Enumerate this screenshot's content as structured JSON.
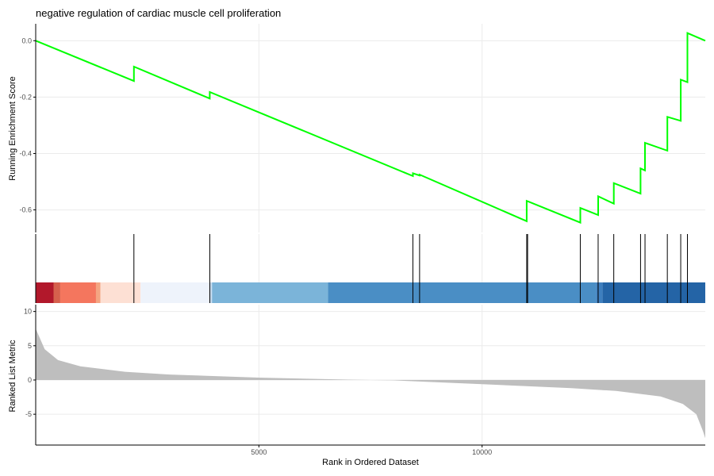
{
  "chart_data": {
    "type": "gsea-enrichment-plot",
    "title": "negative regulation of cardiac muscle cell proliferation",
    "xlabel": "Rank in Ordered Dataset",
    "xlim": [
      0,
      15000
    ],
    "x_ticks": [
      5000,
      10000
    ],
    "x_tick_labels": [
      "5000",
      "10000"
    ],
    "grid": true,
    "panels": {
      "running_score": {
        "ylabel": "Running Enrichment Score",
        "ylim": [
          -0.68,
          0.06
        ],
        "y_ticks": [
          0.0,
          -0.2,
          -0.4,
          -0.6
        ],
        "y_tick_labels": [
          "0.0",
          "-0.2",
          "-0.4",
          "-0.6"
        ],
        "line_color": "#00ff00",
        "series": [
          {
            "x": [
              0,
              2200,
              2200,
              3900,
              3900,
              8450,
              8450,
              8600,
              8600,
              11000,
              11000,
              12200,
              12200,
              12600,
              12600,
              12950,
              12950,
              13550,
              13550,
              13650,
              13650,
              14150,
              14150,
              14450,
              14450,
              14600,
              14600,
              15000
            ],
            "y": [
              0.0,
              -0.143,
              -0.092,
              -0.205,
              -0.182,
              -0.48,
              -0.47,
              -0.478,
              -0.475,
              -0.64,
              -0.568,
              -0.645,
              -0.593,
              -0.618,
              -0.552,
              -0.578,
              -0.505,
              -0.542,
              -0.453,
              -0.46,
              -0.362,
              -0.39,
              -0.27,
              -0.284,
              -0.138,
              -0.147,
              0.027,
              0.0
            ]
          }
        ]
      },
      "gene_hits": {
        "hit_positions": [
          2200,
          3900,
          8450,
          8600,
          11000,
          11020,
          12200,
          12600,
          12950,
          13550,
          13650,
          14150,
          14450,
          14600
        ],
        "color_bar": {
          "segments": [
            {
              "start": 0,
              "end": 400,
              "color": "#b2182b"
            },
            {
              "start": 400,
              "end": 550,
              "color": "#d6604d"
            },
            {
              "start": 550,
              "end": 1350,
              "color": "#f4765e"
            },
            {
              "start": 1350,
              "end": 1450,
              "color": "#f4a582"
            },
            {
              "start": 1450,
              "end": 2350,
              "color": "#fde0d4"
            },
            {
              "start": 2350,
              "end": 3900,
              "color": "#eef3fb"
            },
            {
              "start": 3900,
              "end": 3950,
              "color": "#c6dbef"
            },
            {
              "start": 3950,
              "end": 6550,
              "color": "#7bb4d9"
            },
            {
              "start": 6550,
              "end": 12550,
              "color": "#4a8ec5"
            },
            {
              "start": 12550,
              "end": 12700,
              "color": "#3e7fbf"
            },
            {
              "start": 12700,
              "end": 15000,
              "color": "#2464a6"
            }
          ]
        }
      },
      "ranked_metric": {
        "ylabel": "Ranked List Metric",
        "ylim": [
          -9.5,
          11
        ],
        "y_ticks": [
          10,
          5,
          0,
          -5
        ],
        "y_tick_labels": [
          "10",
          "5",
          "0",
          "-5"
        ],
        "fill_color": "#bebebe",
        "x": [
          0,
          200,
          500,
          1000,
          2000,
          3000,
          5000,
          7000,
          7500,
          8000,
          10000,
          12000,
          13000,
          14000,
          14500,
          14800,
          14950,
          15000
        ],
        "values": [
          7.5,
          4.5,
          2.9,
          2.0,
          1.2,
          0.8,
          0.35,
          0.05,
          0.0,
          -0.05,
          -0.6,
          -1.2,
          -1.6,
          -2.4,
          -3.5,
          -5.0,
          -7.5,
          -8.5
        ]
      }
    }
  }
}
